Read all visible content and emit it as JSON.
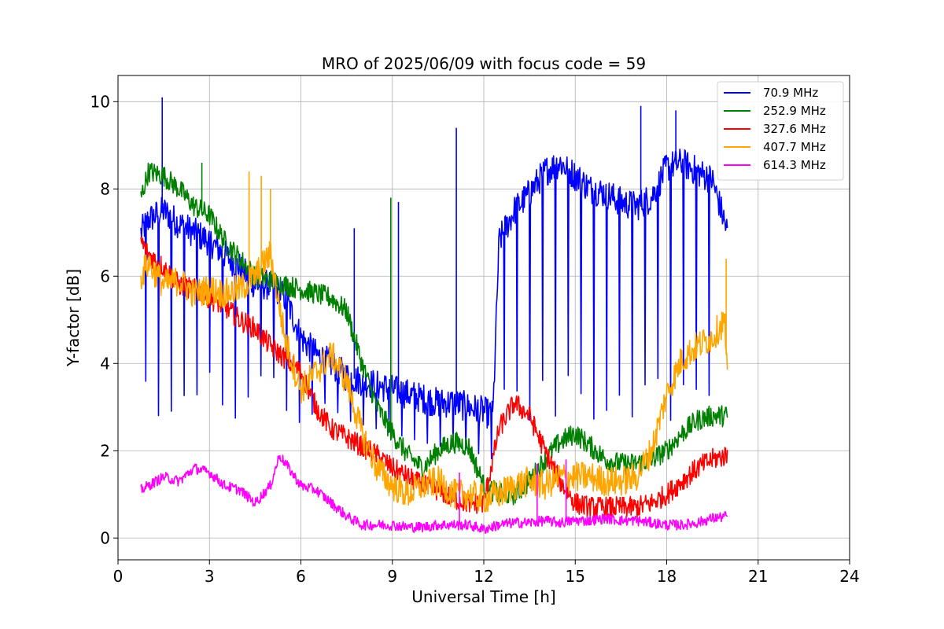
{
  "chart_data": {
    "type": "line",
    "title": "MRO of 2025/06/09 with focus code = 59",
    "xlabel": "Universal Time [h]",
    "ylabel": "Y-factor [dB]",
    "xlim": [
      0,
      24
    ],
    "ylim": [
      -0.5,
      10.6
    ],
    "xticks": [
      0,
      3,
      6,
      9,
      12,
      15,
      18,
      21,
      24
    ],
    "yticks": [
      0,
      2,
      4,
      6,
      8,
      10
    ],
    "grid": true,
    "legend_position": "top-right",
    "series": [
      {
        "name": " 70.9 MHz",
        "color": "#0000ff",
        "x": [
          0.75,
          1.0,
          1.5,
          2.0,
          2.5,
          3.0,
          3.5,
          4.0,
          4.5,
          5.0,
          5.5,
          6.0,
          6.5,
          7.0,
          7.5,
          8.0,
          8.5,
          9.0,
          9.5,
          10.0,
          10.5,
          11.0,
          11.5,
          12.0,
          12.3,
          12.5,
          13.0,
          13.5,
          14.0,
          14.5,
          15.0,
          15.5,
          16.0,
          16.5,
          17.0,
          17.5,
          18.0,
          18.5,
          19.0,
          19.5,
          20.0
        ],
        "values": [
          7.0,
          7.3,
          7.5,
          7.2,
          7.0,
          6.8,
          6.5,
          6.2,
          5.8,
          5.8,
          5.5,
          4.6,
          4.2,
          4.0,
          3.7,
          3.6,
          3.5,
          3.4,
          3.3,
          3.2,
          3.1,
          3.1,
          3.0,
          2.9,
          2.8,
          6.8,
          7.5,
          7.9,
          8.4,
          8.6,
          8.3,
          8.0,
          7.9,
          7.7,
          7.6,
          7.8,
          8.5,
          8.6,
          8.4,
          8.2,
          7.0
        ],
        "spikes_high": [
          [
            1.45,
            10.1
          ],
          [
            11.1,
            9.4
          ],
          [
            17.15,
            9.9
          ],
          [
            18.3,
            9.8
          ],
          [
            9.2,
            7.7
          ],
          [
            7.75,
            7.1
          ]
        ],
        "dips_start": 0.9,
        "dips_end": 19.8,
        "dips_spacing": 0.42,
        "dips_low": 2.6
      },
      {
        "name": "252.9 MHz",
        "color": "#008000",
        "x": [
          0.75,
          1.0,
          1.5,
          2.0,
          2.5,
          3.0,
          3.5,
          4.0,
          4.5,
          5.0,
          5.5,
          6.0,
          6.5,
          7.0,
          7.5,
          8.0,
          8.5,
          9.0,
          9.5,
          10.0,
          10.5,
          11.0,
          11.5,
          12.0,
          12.5,
          13.0,
          13.5,
          14.0,
          14.5,
          15.0,
          15.5,
          16.0,
          16.5,
          17.0,
          17.5,
          18.0,
          18.5,
          19.0,
          19.5,
          20.0
        ],
        "values": [
          7.8,
          8.4,
          8.3,
          8.0,
          7.6,
          7.4,
          6.8,
          6.4,
          6.0,
          5.9,
          5.8,
          5.7,
          5.6,
          5.5,
          5.2,
          4.0,
          3.0,
          2.4,
          1.9,
          1.6,
          2.0,
          2.2,
          2.1,
          1.2,
          1.0,
          1.0,
          1.3,
          1.8,
          2.2,
          2.4,
          2.1,
          1.8,
          1.7,
          1.7,
          1.8,
          2.0,
          2.4,
          2.7,
          2.8,
          2.8
        ],
        "spikes_high": [
          [
            8.95,
            7.8
          ],
          [
            2.75,
            8.6
          ]
        ]
      },
      {
        "name": "327.6 MHz",
        "color": "#ff0000",
        "x": [
          0.75,
          1.0,
          1.5,
          2.0,
          2.5,
          3.0,
          3.5,
          4.0,
          4.5,
          5.0,
          5.5,
          6.0,
          6.5,
          7.0,
          7.5,
          8.0,
          8.5,
          9.0,
          9.5,
          10.0,
          10.5,
          11.0,
          11.5,
          12.0,
          12.5,
          13.0,
          13.5,
          14.0,
          14.5,
          15.0,
          15.5,
          16.0,
          16.5,
          17.0,
          17.5,
          18.0,
          18.5,
          19.0,
          19.5,
          20.0
        ],
        "values": [
          6.8,
          6.5,
          6.2,
          5.8,
          5.7,
          5.5,
          5.3,
          5.0,
          4.8,
          4.4,
          4.1,
          3.8,
          3.0,
          2.5,
          2.3,
          2.1,
          1.9,
          1.6,
          1.4,
          1.2,
          1.1,
          0.9,
          0.8,
          0.8,
          2.5,
          3.1,
          2.8,
          2.0,
          1.3,
          0.8,
          0.7,
          0.7,
          0.7,
          0.7,
          0.8,
          1.0,
          1.3,
          1.6,
          1.8,
          1.9
        ],
        "spikes_high": []
      },
      {
        "name": "407.7 MHz",
        "color": "#ffa500",
        "x": [
          0.75,
          1.0,
          1.5,
          2.0,
          2.5,
          3.0,
          3.5,
          4.0,
          4.5,
          5.0,
          5.5,
          6.0,
          6.5,
          7.0,
          7.5,
          8.0,
          8.5,
          9.0,
          9.5,
          10.0,
          10.5,
          11.0,
          11.5,
          12.0,
          12.5,
          13.0,
          13.5,
          14.0,
          14.5,
          15.0,
          15.5,
          16.0,
          16.5,
          17.0,
          17.5,
          18.0,
          18.5,
          19.0,
          19.5,
          19.9,
          20.0
        ],
        "values": [
          6.0,
          6.3,
          5.8,
          5.9,
          5.6,
          5.7,
          5.6,
          5.7,
          6.0,
          6.5,
          4.5,
          3.4,
          3.8,
          4.2,
          3.6,
          2.4,
          1.6,
          1.2,
          1.0,
          1.2,
          1.3,
          1.0,
          1.0,
          0.9,
          1.0,
          1.2,
          1.3,
          1.2,
          1.4,
          1.4,
          1.4,
          1.3,
          1.3,
          1.4,
          2.0,
          3.3,
          4.1,
          4.4,
          4.6,
          5.0,
          3.4
        ],
        "spikes_high": [
          [
            4.3,
            8.4
          ],
          [
            4.7,
            8.3
          ],
          [
            5.0,
            8.0
          ],
          [
            19.95,
            6.4
          ]
        ]
      },
      {
        "name": "614.3 MHz",
        "color": "#ff00ff",
        "x": [
          0.75,
          1.0,
          1.5,
          2.0,
          2.5,
          3.0,
          3.5,
          4.0,
          4.5,
          5.0,
          5.3,
          5.6,
          6.0,
          6.5,
          7.0,
          7.5,
          8.0,
          8.5,
          9.0,
          9.5,
          10.0,
          10.5,
          11.0,
          11.5,
          12.0,
          12.5,
          13.0,
          13.5,
          14.0,
          14.5,
          15.0,
          15.5,
          16.0,
          16.5,
          17.0,
          17.5,
          18.0,
          18.5,
          19.0,
          19.5,
          20.0
        ],
        "values": [
          1.1,
          1.2,
          1.4,
          1.3,
          1.6,
          1.5,
          1.2,
          1.1,
          0.8,
          1.2,
          1.9,
          1.6,
          1.2,
          1.1,
          0.8,
          0.5,
          0.3,
          0.3,
          0.3,
          0.25,
          0.25,
          0.3,
          0.3,
          0.3,
          0.2,
          0.3,
          0.35,
          0.35,
          0.4,
          0.35,
          0.4,
          0.4,
          0.45,
          0.4,
          0.4,
          0.35,
          0.3,
          0.3,
          0.35,
          0.45,
          0.5
        ],
        "spikes_high": [
          [
            11.2,
            1.5
          ],
          [
            13.75,
            1.7
          ],
          [
            14.7,
            1.8
          ]
        ]
      }
    ]
  }
}
